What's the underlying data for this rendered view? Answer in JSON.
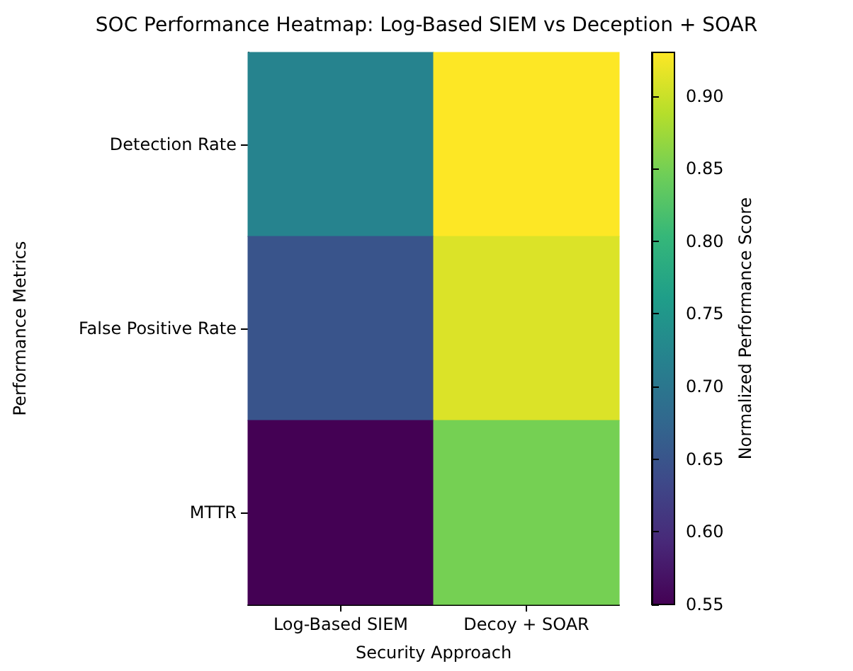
{
  "chart_data": {
    "type": "heatmap",
    "title": "SOC Performance Heatmap: Log-Based SIEM vs Deception + SOAR",
    "xlabel": "Security Approach",
    "ylabel": "Performance Metrics",
    "clabel": "Normalized Performance Score",
    "categories": [
      "Log-Based SIEM",
      "Decoy + SOAR"
    ],
    "y_categories": [
      "Detection Rate",
      "False Positive Rate",
      "MTTR"
    ],
    "cells": [
      [
        0.72,
        0.93
      ],
      [
        0.65,
        0.91
      ],
      [
        0.55,
        0.85
      ]
    ],
    "clim": [
      0.55,
      0.93
    ],
    "cticks": [
      0.55,
      {
        "value": 0.6,
        "label": "0.60"
      },
      0.65,
      {
        "value": 0.7,
        "label": "0.70"
      },
      0.75,
      {
        "value": 0.8,
        "label": "0.80"
      },
      0.85,
      {
        "value": 0.9,
        "label": "0.90"
      }
    ]
  }
}
